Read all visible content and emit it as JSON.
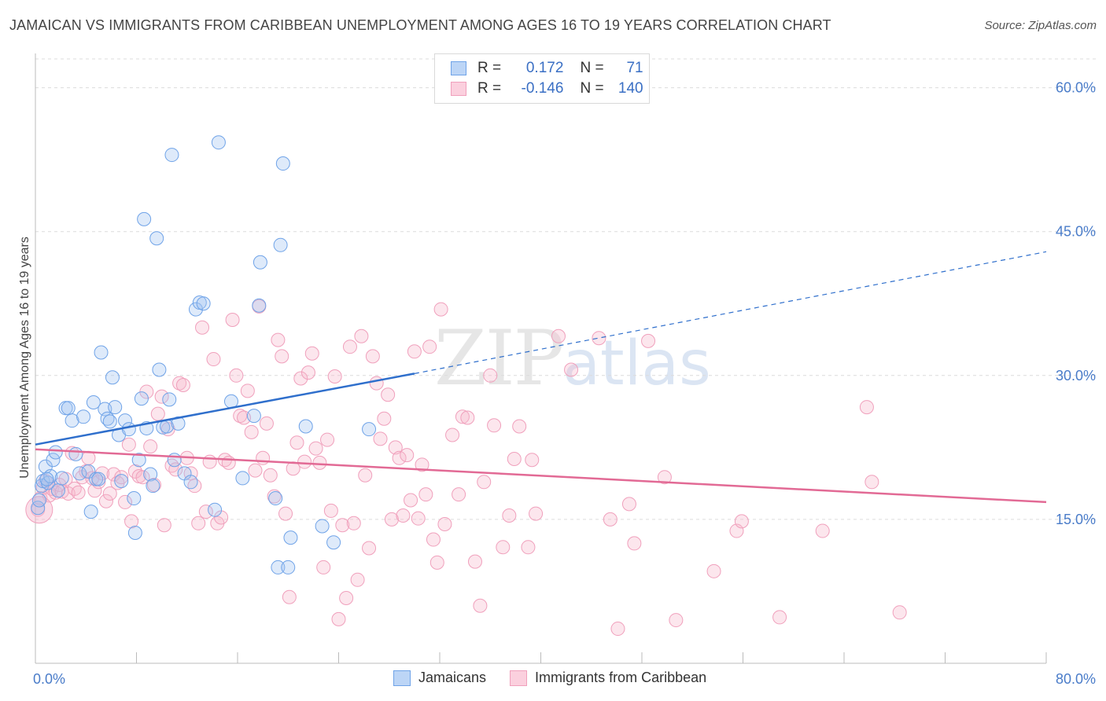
{
  "title": "JAMAICAN VS IMMIGRANTS FROM CARIBBEAN UNEMPLOYMENT AMONG AGES 16 TO 19 YEARS CORRELATION CHART",
  "source": "Source: ZipAtlas.com",
  "watermark": {
    "zip": "ZIP",
    "atlas": "atlas"
  },
  "legend": {
    "rows": [
      {
        "r_label": "R =",
        "r_value": "0.172",
        "n_label": "N =",
        "n_value": "71"
      },
      {
        "r_label": "R =",
        "r_value": "-0.146",
        "n_label": "N =",
        "n_value": "140"
      }
    ]
  },
  "bottom_legend": [
    "Jamaicans",
    "Immigrants from Caribbean"
  ],
  "chart_data": {
    "type": "scatter",
    "title": "JAMAICAN VS IMMIGRANTS FROM CARIBBEAN UNEMPLOYMENT AMONG AGES 16 TO 19 YEARS CORRELATION CHART",
    "xlabel": "",
    "ylabel": "Unemployment Among Ages 16 to 19 years",
    "xlim": [
      0,
      80
    ],
    "ylim": [
      0,
      63
    ],
    "x_tick_labels": [
      "0.0%",
      "80.0%"
    ],
    "y_ticks": [
      15,
      30,
      45,
      60
    ],
    "y_tick_labels": [
      "15.0%",
      "30.0%",
      "45.0%",
      "60.0%"
    ],
    "grid": true,
    "colors": {
      "jamaicans": "#6fa3e8",
      "caribbean": "#f0a0bc",
      "jam_line": "#2f6fcc",
      "car_line": "#e26a95"
    },
    "series": [
      {
        "name": "Jamaicans",
        "trend": {
          "x0": 0,
          "y0": 22.8,
          "x1": 30,
          "y1": 30.2,
          "dash_to_x": 80,
          "dash_to_y": 42.9
        },
        "points": [
          [
            0.2,
            16.2
          ],
          [
            0.3,
            17
          ],
          [
            0.5,
            18.5
          ],
          [
            0.6,
            19
          ],
          [
            0.8,
            20.5
          ],
          [
            1,
            18.8
          ],
          [
            1.2,
            19.5
          ],
          [
            1.4,
            21.2
          ],
          [
            1.6,
            22
          ],
          [
            1.8,
            18
          ],
          [
            2.4,
            26.6
          ],
          [
            2.6,
            26.6
          ],
          [
            2.9,
            25.3
          ],
          [
            3.2,
            21.8
          ],
          [
            3.5,
            19.8
          ],
          [
            3.8,
            25.7
          ],
          [
            4.2,
            20
          ],
          [
            4.4,
            15.8
          ],
          [
            4.6,
            27.2
          ],
          [
            4.8,
            19.2
          ],
          [
            5.0,
            19.2
          ],
          [
            5.2,
            32.4
          ],
          [
            5.5,
            26.5
          ],
          [
            5.7,
            25.5
          ],
          [
            5.9,
            25.2
          ],
          [
            6.1,
            29.8
          ],
          [
            6.3,
            26.7
          ],
          [
            6.6,
            23.8
          ],
          [
            6.8,
            19
          ],
          [
            7.1,
            25.3
          ],
          [
            7.4,
            24.4
          ],
          [
            7.8,
            17.2
          ],
          [
            7.9,
            13.6
          ],
          [
            8.2,
            21.2
          ],
          [
            8.4,
            27.6
          ],
          [
            8.6,
            46.3
          ],
          [
            8.8,
            24.5
          ],
          [
            9.1,
            19.7
          ],
          [
            9.3,
            18.5
          ],
          [
            9.6,
            44.3
          ],
          [
            9.8,
            30.6
          ],
          [
            10.1,
            24.6
          ],
          [
            10.4,
            24.7
          ],
          [
            10.6,
            27.5
          ],
          [
            10.8,
            53
          ],
          [
            11.0,
            21.2
          ],
          [
            11.3,
            25
          ],
          [
            11.8,
            19.8
          ],
          [
            12.3,
            18.9
          ],
          [
            12.7,
            36.9
          ],
          [
            13.0,
            37.6
          ],
          [
            13.3,
            37.5
          ],
          [
            14.2,
            16
          ],
          [
            14.5,
            54.3
          ],
          [
            15.5,
            27.3
          ],
          [
            16.4,
            19.3
          ],
          [
            17.3,
            25.8
          ],
          [
            17.7,
            37.3
          ],
          [
            17.8,
            41.8
          ],
          [
            19.4,
            43.6
          ],
          [
            19.6,
            52.1
          ],
          [
            19.0,
            17.2
          ],
          [
            19.2,
            10
          ],
          [
            20.0,
            10
          ],
          [
            20.2,
            13.1
          ],
          [
            21.4,
            24.7
          ],
          [
            22.7,
            14.3
          ],
          [
            23.6,
            12.6
          ],
          [
            26.4,
            24.4
          ],
          [
            0.9,
            19.2
          ],
          [
            2.1,
            19.3
          ]
        ]
      },
      {
        "name": "Immigrants from Caribbean",
        "trend": {
          "x0": 0,
          "y0": 22.3,
          "x1": 80,
          "y1": 16.8
        },
        "points": [
          [
            0.2,
            16
          ],
          [
            0.4,
            17.2
          ],
          [
            0.6,
            18.3
          ],
          [
            0.8,
            19
          ],
          [
            1.1,
            17.5
          ],
          [
            1.3,
            18.2
          ],
          [
            1.6,
            17.8
          ],
          [
            1.9,
            18.6
          ],
          [
            2.1,
            17.9
          ],
          [
            2.4,
            19.2
          ],
          [
            2.6,
            17.7
          ],
          [
            2.9,
            21.9
          ],
          [
            3.1,
            18.2
          ],
          [
            3.4,
            17.8
          ],
          [
            3.7,
            19.4
          ],
          [
            4.0,
            20
          ],
          [
            4.2,
            21.4
          ],
          [
            4.5,
            19.3
          ],
          [
            4.7,
            18
          ],
          [
            5.0,
            18.9
          ],
          [
            5.3,
            19.8
          ],
          [
            5.6,
            16.9
          ],
          [
            5.9,
            17.7
          ],
          [
            6.2,
            19.7
          ],
          [
            6.5,
            18.8
          ],
          [
            6.8,
            19.4
          ],
          [
            7.1,
            16.8
          ],
          [
            7.4,
            22.8
          ],
          [
            7.6,
            14.8
          ],
          [
            7.9,
            20
          ],
          [
            8.2,
            19.5
          ],
          [
            8.5,
            19.4
          ],
          [
            8.8,
            28.3
          ],
          [
            9.1,
            22.6
          ],
          [
            9.4,
            18.6
          ],
          [
            9.7,
            26
          ],
          [
            10.0,
            27.8
          ],
          [
            10.2,
            14.4
          ],
          [
            10.5,
            24.4
          ],
          [
            10.8,
            20.6
          ],
          [
            11.1,
            20.2
          ],
          [
            11.4,
            29.2
          ],
          [
            11.7,
            29
          ],
          [
            12.0,
            21.4
          ],
          [
            12.3,
            19.8
          ],
          [
            12.6,
            18.5
          ],
          [
            12.9,
            14.6
          ],
          [
            13.2,
            35
          ],
          [
            13.5,
            15.8
          ],
          [
            13.8,
            21
          ],
          [
            14.1,
            31.7
          ],
          [
            14.4,
            14.6
          ],
          [
            14.7,
            15.2
          ],
          [
            15.0,
            21.2
          ],
          [
            15.3,
            20.9
          ],
          [
            15.6,
            35.8
          ],
          [
            15.9,
            30
          ],
          [
            16.2,
            25.8
          ],
          [
            16.5,
            25.6
          ],
          [
            16.8,
            28.4
          ],
          [
            17.1,
            24.1
          ],
          [
            17.4,
            20.1
          ],
          [
            17.7,
            37.2
          ],
          [
            18.0,
            21.4
          ],
          [
            18.3,
            25
          ],
          [
            18.6,
            19.6
          ],
          [
            18.9,
            17.4
          ],
          [
            19.2,
            33.7
          ],
          [
            19.5,
            32
          ],
          [
            19.8,
            15.6
          ],
          [
            20.1,
            6.9
          ],
          [
            20.4,
            20.3
          ],
          [
            20.7,
            23
          ],
          [
            21.0,
            29.7
          ],
          [
            21.3,
            21
          ],
          [
            21.6,
            30.3
          ],
          [
            21.9,
            32.3
          ],
          [
            22.2,
            22.4
          ],
          [
            22.5,
            20.9
          ],
          [
            22.8,
            10
          ],
          [
            23.1,
            23.3
          ],
          [
            23.4,
            15.9
          ],
          [
            23.7,
            29.9
          ],
          [
            24.0,
            4.6
          ],
          [
            24.3,
            14.4
          ],
          [
            24.6,
            6.8
          ],
          [
            24.9,
            33
          ],
          [
            25.2,
            14.6
          ],
          [
            25.5,
            8.7
          ],
          [
            25.8,
            34.1
          ],
          [
            26.1,
            19.6
          ],
          [
            26.4,
            12
          ],
          [
            26.7,
            32
          ],
          [
            27.0,
            29.2
          ],
          [
            27.3,
            23.4
          ],
          [
            27.6,
            25.5
          ],
          [
            27.9,
            28
          ],
          [
            28.2,
            15
          ],
          [
            28.5,
            22.5
          ],
          [
            28.8,
            21.4
          ],
          [
            29.1,
            15.4
          ],
          [
            29.4,
            21.7
          ],
          [
            29.7,
            17
          ],
          [
            30.0,
            32.5
          ],
          [
            30.3,
            15.1
          ],
          [
            30.6,
            20.7
          ],
          [
            30.9,
            17.6
          ],
          [
            31.2,
            33
          ],
          [
            31.5,
            12.9
          ],
          [
            31.8,
            10.5
          ],
          [
            32.1,
            36.9
          ],
          [
            32.4,
            14.5
          ],
          [
            33.0,
            23.8
          ],
          [
            33.5,
            17.6
          ],
          [
            33.8,
            25.7
          ],
          [
            34.2,
            25.6
          ],
          [
            34.8,
            10.6
          ],
          [
            35.2,
            6
          ],
          [
            35.5,
            18.9
          ],
          [
            36.0,
            30
          ],
          [
            36.3,
            24.8
          ],
          [
            37.0,
            12.1
          ],
          [
            37.5,
            15.4
          ],
          [
            37.9,
            21.3
          ],
          [
            38.3,
            24.7
          ],
          [
            39.0,
            12.1
          ],
          [
            39.3,
            21.2
          ],
          [
            39.6,
            15.6
          ],
          [
            41.4,
            34.1
          ],
          [
            42.4,
            30.6
          ],
          [
            44.6,
            33.9
          ],
          [
            45.5,
            15
          ],
          [
            46.1,
            3.6
          ],
          [
            47.0,
            16.6
          ],
          [
            47.4,
            12.5
          ],
          [
            48.5,
            33.6
          ],
          [
            49.8,
            19.4
          ],
          [
            50.7,
            4.5
          ],
          [
            53.7,
            9.6
          ],
          [
            55.5,
            13.8
          ],
          [
            55.9,
            14.8
          ],
          [
            58.9,
            4.8
          ],
          [
            62.3,
            13.8
          ],
          [
            65.8,
            26.7
          ],
          [
            66.2,
            18.9
          ],
          [
            68.4,
            5.3
          ]
        ]
      }
    ]
  }
}
